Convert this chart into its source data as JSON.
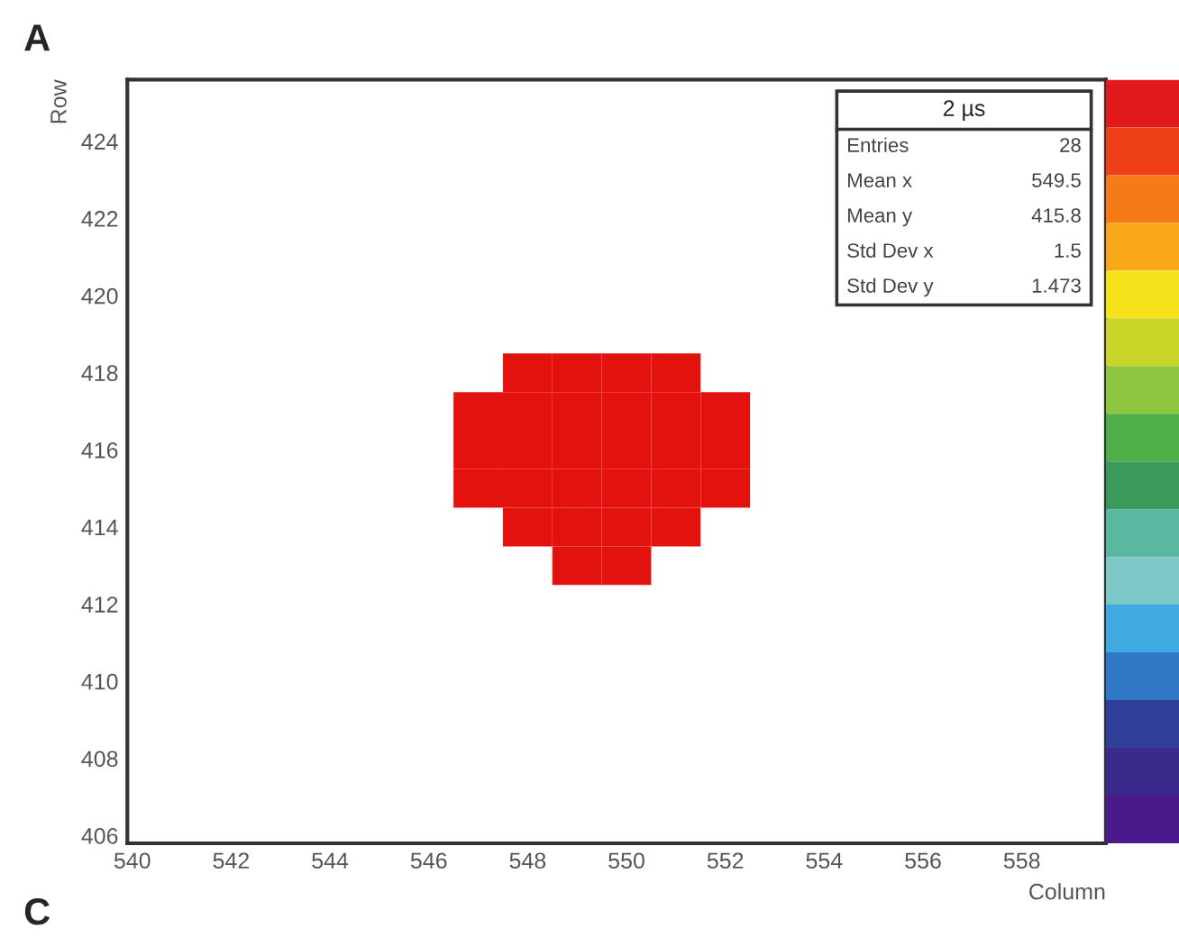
{
  "chart_data": {
    "type": "scatter",
    "xlabel": "Column",
    "ylabel": "Row",
    "x": [
      548,
      549,
      550,
      551,
      547,
      548,
      549,
      550,
      551,
      552,
      547,
      548,
      549,
      550,
      551,
      552,
      547,
      548,
      549,
      550,
      551,
      552,
      548,
      549,
      550,
      551,
      549,
      550
    ],
    "series": [
      {
        "color": "#e3120e",
        "values": [
          418,
          418,
          418,
          418,
          417,
          417,
          417,
          417,
          417,
          417,
          416,
          416,
          416,
          416,
          416,
          416,
          415,
          415,
          415,
          415,
          415,
          415,
          414,
          414,
          414,
          414,
          413,
          413
        ]
      }
    ],
    "marker": "square",
    "grid": false,
    "xlim": [
      539.9,
      559.7
    ],
    "ylim": [
      405.8,
      425.6
    ],
    "xticks": [
      540,
      542,
      544,
      546,
      548,
      550,
      552,
      554,
      556,
      558
    ],
    "yticks": [
      406,
      408,
      410,
      412,
      414,
      416,
      418,
      420,
      422,
      424
    ],
    "annotations": [
      "A",
      "C",
      "2 µs",
      "Entries",
      "28",
      "Mean x",
      "549.5",
      "Mean y",
      "415.8",
      "Std Dev x",
      "1.5",
      "Std Dev y",
      "1.473"
    ]
  }
}
